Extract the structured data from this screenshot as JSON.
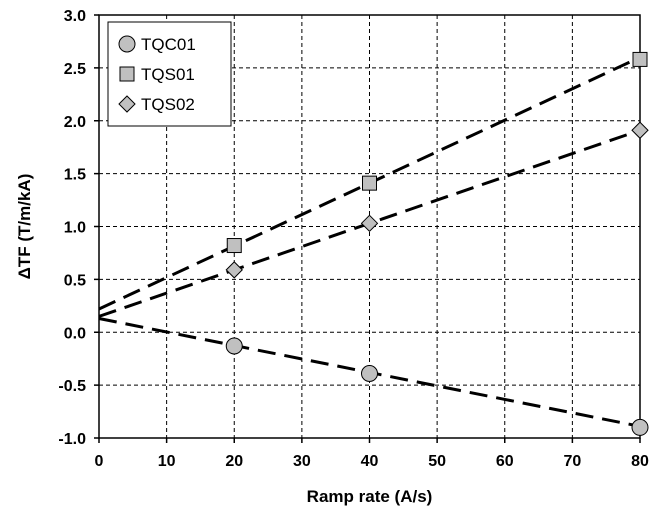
{
  "chart_data": {
    "type": "scatter",
    "xlabel": "Ramp rate (A/s)",
    "ylabel": "ΔTF (T/m/kA)",
    "xlim": [
      0,
      80
    ],
    "ylim": [
      -1.0,
      3.0
    ],
    "x_ticks": [
      "0",
      "10",
      "20",
      "30",
      "40",
      "50",
      "60",
      "70",
      "80"
    ],
    "y_ticks": [
      "-1.0",
      "-0.5",
      "0.0",
      "0.5",
      "1.0",
      "1.5",
      "2.0",
      "2.5",
      "3.0"
    ],
    "grid": true,
    "legend_position": "top-left",
    "series": [
      {
        "name": "TQC01",
        "marker": "circle",
        "color": "#c0c0c0",
        "points": [
          {
            "x": 20,
            "y": -0.13
          },
          {
            "x": 40,
            "y": -0.39
          },
          {
            "x": 80,
            "y": -0.9
          }
        ],
        "fit": {
          "intercept": 0.13,
          "slope": -0.01275
        }
      },
      {
        "name": "TQS01",
        "marker": "square",
        "color": "#c0c0c0",
        "points": [
          {
            "x": 20,
            "y": 0.82
          },
          {
            "x": 40,
            "y": 1.41
          },
          {
            "x": 80,
            "y": 2.58
          }
        ],
        "fit": {
          "intercept": 0.22,
          "slope": 0.02975
        }
      },
      {
        "name": "TQS02",
        "marker": "diamond",
        "color": "#c0c0c0",
        "points": [
          {
            "x": 20,
            "y": 0.59
          },
          {
            "x": 40,
            "y": 1.03
          },
          {
            "x": 80,
            "y": 1.91
          }
        ],
        "fit": {
          "intercept": 0.15,
          "slope": 0.022
        }
      }
    ]
  }
}
